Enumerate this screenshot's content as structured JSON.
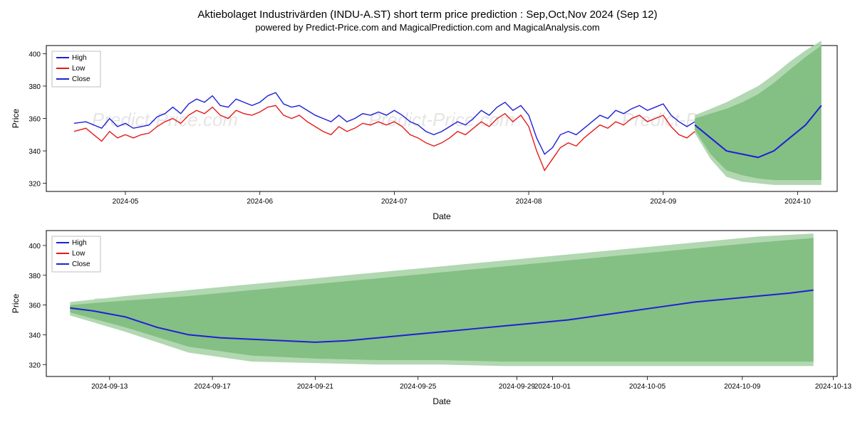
{
  "title": "Aktiebolaget Industrivärden (INDU-A.ST) short term price prediction : Sep,Oct,Nov 2024 (Sep 12)",
  "subtitle": "powered by Predict-Price.com and MagicalPrediction.com and MagicalAnalysis.com",
  "watermark_text": "Predict-Price.com",
  "legend": {
    "items": [
      {
        "label": "High",
        "color": "#1f1fd6"
      },
      {
        "label": "Low",
        "color": "#e41a1c"
      },
      {
        "label": "Close",
        "color": "#1f1fd6"
      }
    ],
    "border_color": "#bfbfbf",
    "background": "#ffffff"
  },
  "chart1": {
    "type": "line-with-band",
    "xlabel": "Date",
    "ylabel": "Price",
    "plot_bg": "#ffffff",
    "border_color": "#000000",
    "grid_color": "#ffffff",
    "ylim": [
      315,
      405
    ],
    "yticks": [
      320,
      340,
      360,
      380,
      400
    ],
    "xticks": [
      "2024-05",
      "2024-06",
      "2024-07",
      "2024-08",
      "2024-09",
      "2024-10"
    ],
    "xtick_positions": [
      0.1,
      0.27,
      0.44,
      0.61,
      0.78,
      0.95
    ],
    "high": {
      "color": "#1f1fd6",
      "width": 1.4,
      "points": [
        [
          0.035,
          357
        ],
        [
          0.05,
          358
        ],
        [
          0.06,
          356
        ],
        [
          0.07,
          354
        ],
        [
          0.08,
          360
        ],
        [
          0.09,
          355
        ],
        [
          0.1,
          357
        ],
        [
          0.11,
          354
        ],
        [
          0.12,
          355
        ],
        [
          0.13,
          356
        ],
        [
          0.14,
          361
        ],
        [
          0.15,
          363
        ],
        [
          0.16,
          367
        ],
        [
          0.17,
          363
        ],
        [
          0.18,
          369
        ],
        [
          0.19,
          372
        ],
        [
          0.2,
          370
        ],
        [
          0.21,
          374
        ],
        [
          0.22,
          368
        ],
        [
          0.23,
          367
        ],
        [
          0.24,
          372
        ],
        [
          0.25,
          370
        ],
        [
          0.26,
          368
        ],
        [
          0.27,
          370
        ],
        [
          0.28,
          374
        ],
        [
          0.29,
          376
        ],
        [
          0.3,
          369
        ],
        [
          0.31,
          367
        ],
        [
          0.32,
          368
        ],
        [
          0.33,
          365
        ],
        [
          0.34,
          362
        ],
        [
          0.35,
          360
        ],
        [
          0.36,
          358
        ],
        [
          0.37,
          362
        ],
        [
          0.38,
          358
        ],
        [
          0.39,
          360
        ],
        [
          0.4,
          363
        ],
        [
          0.41,
          362
        ],
        [
          0.42,
          364
        ],
        [
          0.43,
          362
        ],
        [
          0.44,
          365
        ],
        [
          0.45,
          362
        ],
        [
          0.46,
          358
        ],
        [
          0.47,
          356
        ],
        [
          0.48,
          352
        ],
        [
          0.49,
          350
        ],
        [
          0.5,
          352
        ],
        [
          0.51,
          355
        ],
        [
          0.52,
          358
        ],
        [
          0.53,
          356
        ],
        [
          0.54,
          360
        ],
        [
          0.55,
          365
        ],
        [
          0.56,
          362
        ],
        [
          0.57,
          367
        ],
        [
          0.58,
          370
        ],
        [
          0.59,
          365
        ],
        [
          0.6,
          368
        ],
        [
          0.61,
          362
        ],
        [
          0.62,
          348
        ],
        [
          0.63,
          338
        ],
        [
          0.64,
          342
        ],
        [
          0.65,
          350
        ],
        [
          0.66,
          352
        ],
        [
          0.67,
          350
        ],
        [
          0.68,
          354
        ],
        [
          0.69,
          358
        ],
        [
          0.7,
          362
        ],
        [
          0.71,
          360
        ],
        [
          0.72,
          365
        ],
        [
          0.73,
          363
        ],
        [
          0.74,
          366
        ],
        [
          0.75,
          368
        ],
        [
          0.76,
          365
        ],
        [
          0.77,
          367
        ],
        [
          0.78,
          369
        ],
        [
          0.79,
          362
        ],
        [
          0.8,
          358
        ],
        [
          0.81,
          355
        ],
        [
          0.82,
          358
        ]
      ]
    },
    "low": {
      "color": "#e41a1c",
      "width": 1.4,
      "points": [
        [
          0.035,
          352
        ],
        [
          0.05,
          354
        ],
        [
          0.06,
          350
        ],
        [
          0.07,
          346
        ],
        [
          0.08,
          352
        ],
        [
          0.09,
          348
        ],
        [
          0.1,
          350
        ],
        [
          0.11,
          348
        ],
        [
          0.12,
          350
        ],
        [
          0.13,
          351
        ],
        [
          0.14,
          355
        ],
        [
          0.15,
          358
        ],
        [
          0.16,
          360
        ],
        [
          0.17,
          357
        ],
        [
          0.18,
          362
        ],
        [
          0.19,
          365
        ],
        [
          0.2,
          363
        ],
        [
          0.21,
          367
        ],
        [
          0.22,
          362
        ],
        [
          0.23,
          360
        ],
        [
          0.24,
          365
        ],
        [
          0.25,
          363
        ],
        [
          0.26,
          362
        ],
        [
          0.27,
          364
        ],
        [
          0.28,
          367
        ],
        [
          0.29,
          368
        ],
        [
          0.3,
          362
        ],
        [
          0.31,
          360
        ],
        [
          0.32,
          362
        ],
        [
          0.33,
          358
        ],
        [
          0.34,
          355
        ],
        [
          0.35,
          352
        ],
        [
          0.36,
          350
        ],
        [
          0.37,
          355
        ],
        [
          0.38,
          352
        ],
        [
          0.39,
          354
        ],
        [
          0.4,
          357
        ],
        [
          0.41,
          356
        ],
        [
          0.42,
          358
        ],
        [
          0.43,
          356
        ],
        [
          0.44,
          358
        ],
        [
          0.45,
          355
        ],
        [
          0.46,
          350
        ],
        [
          0.47,
          348
        ],
        [
          0.48,
          345
        ],
        [
          0.49,
          343
        ],
        [
          0.5,
          345
        ],
        [
          0.51,
          348
        ],
        [
          0.52,
          352
        ],
        [
          0.53,
          350
        ],
        [
          0.54,
          354
        ],
        [
          0.55,
          358
        ],
        [
          0.56,
          355
        ],
        [
          0.57,
          360
        ],
        [
          0.58,
          363
        ],
        [
          0.59,
          358
        ],
        [
          0.6,
          362
        ],
        [
          0.61,
          355
        ],
        [
          0.62,
          340
        ],
        [
          0.63,
          328
        ],
        [
          0.64,
          335
        ],
        [
          0.65,
          342
        ],
        [
          0.66,
          345
        ],
        [
          0.67,
          343
        ],
        [
          0.68,
          348
        ],
        [
          0.69,
          352
        ],
        [
          0.7,
          356
        ],
        [
          0.71,
          354
        ],
        [
          0.72,
          358
        ],
        [
          0.73,
          356
        ],
        [
          0.74,
          360
        ],
        [
          0.75,
          362
        ],
        [
          0.76,
          358
        ],
        [
          0.77,
          360
        ],
        [
          0.78,
          362
        ],
        [
          0.79,
          355
        ],
        [
          0.8,
          350
        ],
        [
          0.81,
          348
        ],
        [
          0.82,
          352
        ]
      ]
    },
    "close": {
      "color": "#1f1fd6",
      "width": 2,
      "points_history": [
        [
          0.82,
          356
        ]
      ],
      "points_prediction": [
        [
          0.82,
          356
        ],
        [
          0.84,
          348
        ],
        [
          0.86,
          340
        ],
        [
          0.88,
          338
        ],
        [
          0.9,
          336
        ],
        [
          0.92,
          340
        ],
        [
          0.94,
          348
        ],
        [
          0.96,
          356
        ],
        [
          0.98,
          368
        ]
      ]
    },
    "band": {
      "fill_dark": "#7fbc7f",
      "fill_light": "#a8d4a8",
      "upper": [
        [
          0.82,
          360
        ],
        [
          0.84,
          363
        ],
        [
          0.86,
          366
        ],
        [
          0.88,
          370
        ],
        [
          0.9,
          375
        ],
        [
          0.92,
          382
        ],
        [
          0.94,
          390
        ],
        [
          0.96,
          398
        ],
        [
          0.98,
          405
        ]
      ],
      "lower": [
        [
          0.82,
          353
        ],
        [
          0.84,
          338
        ],
        [
          0.86,
          328
        ],
        [
          0.88,
          325
        ],
        [
          0.9,
          323
        ],
        [
          0.92,
          322
        ],
        [
          0.94,
          322
        ],
        [
          0.96,
          322
        ],
        [
          0.98,
          322
        ]
      ],
      "upper_light": [
        [
          0.82,
          362
        ],
        [
          0.84,
          366
        ],
        [
          0.86,
          370
        ],
        [
          0.88,
          375
        ],
        [
          0.9,
          380
        ],
        [
          0.92,
          387
        ],
        [
          0.94,
          395
        ],
        [
          0.96,
          402
        ],
        [
          0.98,
          408
        ]
      ],
      "lower_light": [
        [
          0.82,
          351
        ],
        [
          0.84,
          335
        ],
        [
          0.86,
          324
        ],
        [
          0.88,
          321
        ],
        [
          0.9,
          320
        ],
        [
          0.92,
          319
        ],
        [
          0.94,
          319
        ],
        [
          0.96,
          319
        ],
        [
          0.98,
          319
        ]
      ]
    }
  },
  "chart2": {
    "type": "line-with-band",
    "xlabel": "Date",
    "ylabel": "Price",
    "plot_bg": "#ffffff",
    "border_color": "#000000",
    "ylim": [
      312,
      410
    ],
    "yticks": [
      320,
      340,
      360,
      380,
      400
    ],
    "xticks": [
      "2024-09-13",
      "2024-09-17",
      "2024-09-21",
      "2024-09-25",
      "2024-09-29",
      "2024-10-01",
      "2024-10-05",
      "2024-10-09",
      "2024-10-13"
    ],
    "xtick_positions": [
      0.08,
      0.21,
      0.34,
      0.47,
      0.595,
      0.64,
      0.76,
      0.88,
      0.995
    ],
    "close": {
      "color": "#1f1fd6",
      "width": 2,
      "points": [
        [
          0.03,
          358
        ],
        [
          0.06,
          356
        ],
        [
          0.1,
          352
        ],
        [
          0.14,
          345
        ],
        [
          0.18,
          340
        ],
        [
          0.22,
          338
        ],
        [
          0.26,
          337
        ],
        [
          0.3,
          336
        ],
        [
          0.34,
          335
        ],
        [
          0.38,
          336
        ],
        [
          0.42,
          338
        ],
        [
          0.46,
          340
        ],
        [
          0.5,
          342
        ],
        [
          0.54,
          344
        ],
        [
          0.58,
          346
        ],
        [
          0.62,
          348
        ],
        [
          0.66,
          350
        ],
        [
          0.7,
          353
        ],
        [
          0.74,
          356
        ],
        [
          0.78,
          359
        ],
        [
          0.82,
          362
        ],
        [
          0.86,
          364
        ],
        [
          0.9,
          366
        ],
        [
          0.94,
          368
        ],
        [
          0.97,
          370
        ]
      ]
    },
    "band": {
      "fill_dark": "#7fbc7f",
      "fill_light": "#a8d4a8",
      "upper": [
        [
          0.03,
          360
        ],
        [
          0.1,
          363
        ],
        [
          0.18,
          366
        ],
        [
          0.26,
          370
        ],
        [
          0.34,
          374
        ],
        [
          0.42,
          378
        ],
        [
          0.5,
          382
        ],
        [
          0.58,
          386
        ],
        [
          0.66,
          390
        ],
        [
          0.74,
          394
        ],
        [
          0.82,
          398
        ],
        [
          0.9,
          402
        ],
        [
          0.97,
          405
        ]
      ],
      "lower": [
        [
          0.03,
          355
        ],
        [
          0.1,
          345
        ],
        [
          0.18,
          332
        ],
        [
          0.26,
          326
        ],
        [
          0.34,
          324
        ],
        [
          0.42,
          323
        ],
        [
          0.5,
          323
        ],
        [
          0.58,
          322
        ],
        [
          0.66,
          322
        ],
        [
          0.74,
          322
        ],
        [
          0.82,
          322
        ],
        [
          0.9,
          322
        ],
        [
          0.97,
          322
        ]
      ],
      "upper_light": [
        [
          0.03,
          362
        ],
        [
          0.1,
          366
        ],
        [
          0.18,
          370
        ],
        [
          0.26,
          374
        ],
        [
          0.34,
          378
        ],
        [
          0.42,
          382
        ],
        [
          0.5,
          386
        ],
        [
          0.58,
          390
        ],
        [
          0.66,
          394
        ],
        [
          0.74,
          398
        ],
        [
          0.82,
          402
        ],
        [
          0.9,
          406
        ],
        [
          0.97,
          408
        ]
      ],
      "lower_light": [
        [
          0.03,
          353
        ],
        [
          0.1,
          342
        ],
        [
          0.18,
          328
        ],
        [
          0.26,
          322
        ],
        [
          0.34,
          321
        ],
        [
          0.42,
          320
        ],
        [
          0.5,
          320
        ],
        [
          0.58,
          319
        ],
        [
          0.66,
          319
        ],
        [
          0.74,
          319
        ],
        [
          0.82,
          319
        ],
        [
          0.9,
          319
        ],
        [
          0.97,
          319
        ]
      ]
    }
  },
  "axis_font_size": 11,
  "label_font_size": 12,
  "tick_font_size": 10
}
